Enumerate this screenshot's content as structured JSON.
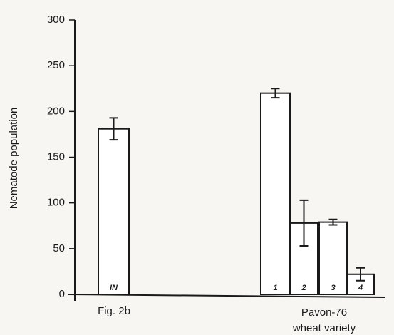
{
  "chart_data": {
    "type": "bar",
    "y_label": "Nematode population",
    "categories": [
      "IN",
      "1",
      "2",
      "3",
      "4"
    ],
    "values": [
      181,
      220,
      78,
      79,
      22
    ],
    "errors": [
      12,
      5,
      25,
      3,
      7
    ],
    "group_labels": [
      "Fig. 2b",
      "Pavon-76",
      "wheat variety"
    ],
    "color": "#ffffff",
    "ylim": [
      0,
      300
    ],
    "yticks": [
      0,
      50,
      100,
      150,
      200,
      250,
      300
    ],
    "grid": false
  }
}
